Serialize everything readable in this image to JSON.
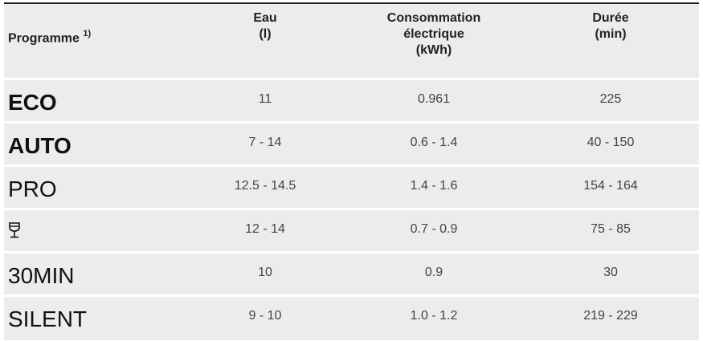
{
  "header": {
    "programme": "Programme",
    "programme_note": "1)",
    "eau": "Eau",
    "eau_unit": "(l)",
    "conso_line1": "Consommation",
    "conso_line2": "électrique",
    "conso_unit": "(kWh)",
    "duree": "Durée",
    "duree_unit": "(min)"
  },
  "rows": [
    {
      "programme": "ECO",
      "eau": "11",
      "conso": "0.961",
      "duree": "225"
    },
    {
      "programme": "AUTO",
      "eau": "7 - 14",
      "conso": "0.6 - 1.4",
      "duree": "40 - 150"
    },
    {
      "programme": "PRO",
      "eau": "12.5 - 14.5",
      "conso": "1.4 - 1.6",
      "duree": "154 - 164"
    },
    {
      "programme_icon": "glass-icon",
      "eau": "12 - 14",
      "conso": "0.7 - 0.9",
      "duree": "75 - 85"
    },
    {
      "programme": "30MIN",
      "eau": "10",
      "conso": "0.9",
      "duree": "30"
    },
    {
      "programme": "SILENT",
      "eau": "9 - 10",
      "conso": "1.0 - 1.2",
      "duree": "219 - 229"
    }
  ]
}
